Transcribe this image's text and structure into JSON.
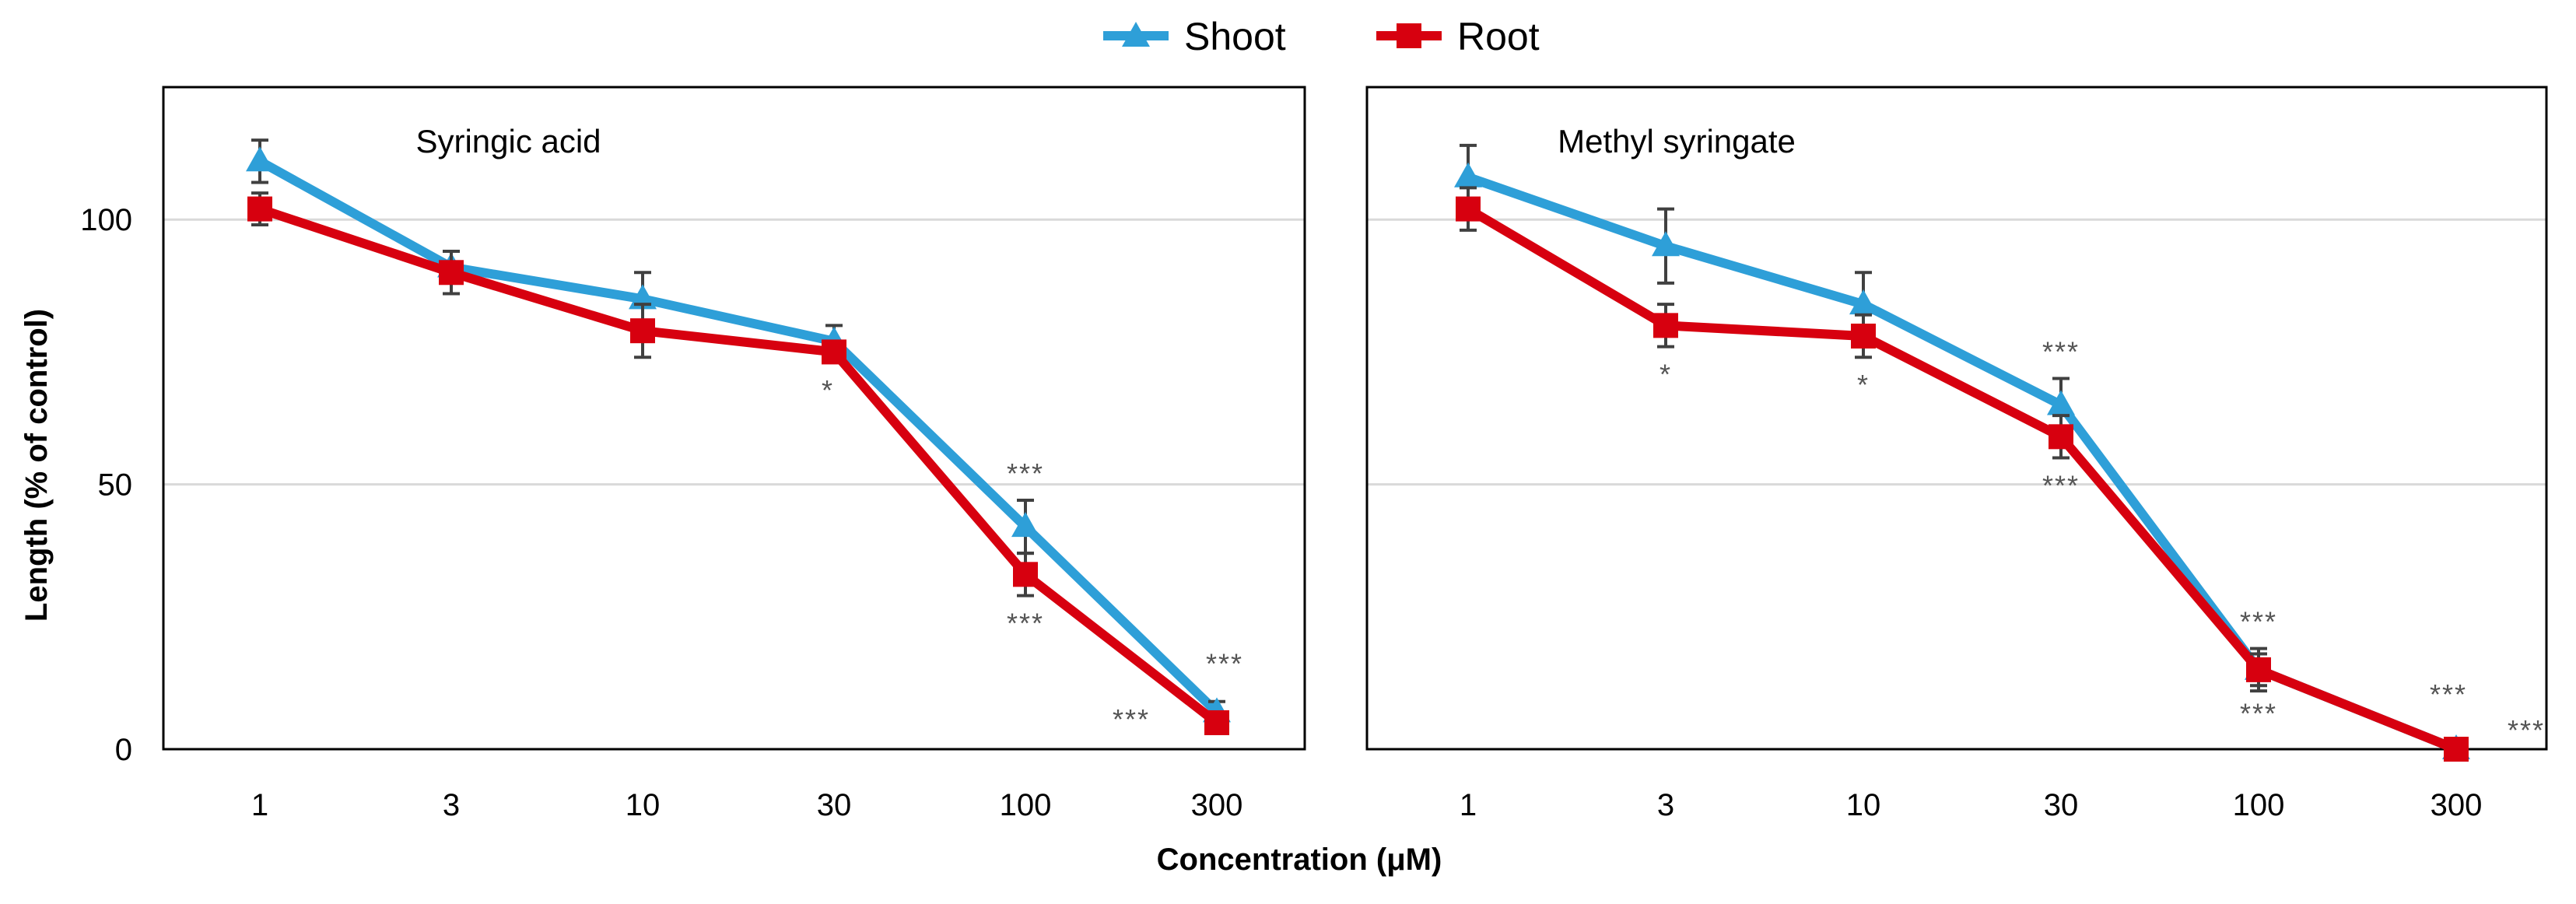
{
  "legend": [
    {
      "name": "Shoot",
      "color": "#2e9fd8",
      "marker": "triangle"
    },
    {
      "name": "Root",
      "color": "#d7000f",
      "marker": "square"
    }
  ],
  "chart_data": [
    {
      "type": "line",
      "title": "Syringic acid",
      "xlabel": "Concentration (μM)",
      "ylabel": "Length (% of control)",
      "categories": [
        "1",
        "3",
        "10",
        "30",
        "100",
        "300"
      ],
      "ylim": [
        0,
        125
      ],
      "yticks": [
        0,
        50,
        100
      ],
      "grid": true,
      "series": [
        {
          "name": "Shoot",
          "color": "#2e9fd8",
          "marker": "triangle",
          "values": [
            111,
            91,
            85,
            77,
            42,
            7
          ],
          "errors": [
            4,
            3,
            5,
            3,
            5,
            2
          ],
          "significance": [
            "",
            "",
            "",
            "",
            "***",
            "***"
          ]
        },
        {
          "name": "Root",
          "color": "#d7000f",
          "marker": "square",
          "values": [
            102,
            90,
            79,
            75,
            33,
            5
          ],
          "errors": [
            3,
            4,
            5,
            2,
            4,
            1
          ],
          "significance": [
            "",
            "",
            "",
            "*",
            "***",
            "***"
          ]
        }
      ]
    },
    {
      "type": "line",
      "title": "Methyl syringate",
      "xlabel": "Concentration (μM)",
      "ylabel": "Length (% of control)",
      "categories": [
        "1",
        "3",
        "10",
        "30",
        "100",
        "300"
      ],
      "ylim": [
        0,
        125
      ],
      "yticks": [
        0,
        50,
        100
      ],
      "grid": true,
      "series": [
        {
          "name": "Shoot",
          "color": "#2e9fd8",
          "marker": "triangle",
          "values": [
            108,
            95,
            84,
            65,
            15,
            0
          ],
          "errors": [
            6,
            7,
            6,
            5,
            4,
            1
          ],
          "significance": [
            "",
            "",
            "",
            "***",
            "***",
            "***"
          ]
        },
        {
          "name": "Root",
          "color": "#d7000f",
          "marker": "square",
          "values": [
            102,
            80,
            78,
            59,
            15,
            0
          ],
          "errors": [
            4,
            4,
            4,
            4,
            3,
            1
          ],
          "significance": [
            "",
            "*",
            "*",
            "***",
            "***",
            "***"
          ]
        }
      ]
    }
  ]
}
